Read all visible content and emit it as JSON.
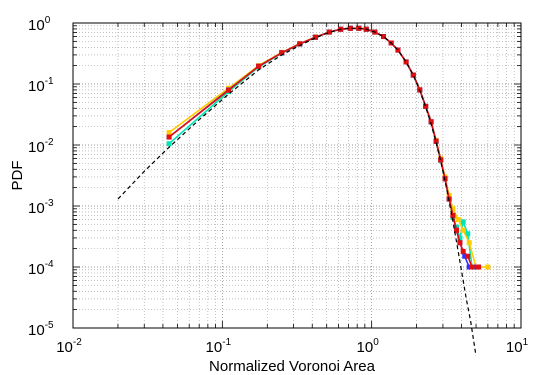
{
  "chart_data": {
    "type": "line",
    "title": "",
    "xlabel": "Normalized Voronoi Area",
    "ylabel": "PDF",
    "xscale": "log",
    "yscale": "log",
    "xlim": [
      0.01,
      10
    ],
    "ylim": [
      1e-05,
      1
    ],
    "x_ticks": [
      {
        "base": "10",
        "exp": "-2"
      },
      {
        "base": "10",
        "exp": "-1"
      },
      {
        "base": "10",
        "exp": "0"
      },
      {
        "base": "10",
        "exp": "1"
      }
    ],
    "y_ticks": [
      {
        "base": "10",
        "exp": "-5"
      },
      {
        "base": "10",
        "exp": "-4"
      },
      {
        "base": "10",
        "exp": "-3"
      },
      {
        "base": "10",
        "exp": "-2"
      },
      {
        "base": "10",
        "exp": "-1"
      },
      {
        "base": "10",
        "exp": "0"
      }
    ],
    "grid": true,
    "legend": "none",
    "series": [
      {
        "style": "solid",
        "color": "#00e5b5",
        "marker": "square",
        "x": [
          0.044,
          0.11,
          0.175,
          0.25,
          0.33,
          0.42,
          0.52,
          0.62,
          0.72,
          0.82,
          0.92,
          1.05,
          1.2,
          1.35,
          1.5,
          1.7,
          1.9,
          2.1,
          2.3,
          2.5,
          2.7,
          2.9,
          3.1,
          3.3,
          3.5,
          3.7,
          3.9,
          4.1,
          4.4,
          4.7
        ],
        "y": [
          0.0105,
          0.075,
          0.19,
          0.32,
          0.45,
          0.58,
          0.71,
          0.79,
          0.82,
          0.82,
          0.79,
          0.71,
          0.6,
          0.47,
          0.36,
          0.23,
          0.14,
          0.08,
          0.043,
          0.024,
          0.0115,
          0.0056,
          0.0028,
          0.0013,
          0.00065,
          0.00045,
          0.0003,
          0.00055,
          0.00035,
          0.0001
        ]
      },
      {
        "style": "solid",
        "color": "#ffcc00",
        "marker": "square",
        "x": [
          0.044,
          0.11,
          0.175,
          0.25,
          0.33,
          0.42,
          0.52,
          0.62,
          0.72,
          0.82,
          0.92,
          1.05,
          1.2,
          1.35,
          1.5,
          1.7,
          1.9,
          2.1,
          2.3,
          2.5,
          2.7,
          2.9,
          3.1,
          3.3,
          3.5,
          3.8,
          4.1,
          4.5,
          5.0,
          6.0
        ],
        "y": [
          0.016,
          0.085,
          0.2,
          0.33,
          0.46,
          0.59,
          0.71,
          0.79,
          0.82,
          0.82,
          0.79,
          0.71,
          0.6,
          0.47,
          0.36,
          0.23,
          0.14,
          0.08,
          0.043,
          0.024,
          0.012,
          0.006,
          0.003,
          0.0015,
          0.0009,
          0.0006,
          0.0004,
          0.00025,
          0.0001,
          0.0001
        ]
      },
      {
        "style": "solid",
        "color": "#3030ff",
        "marker": "square",
        "x": [
          0.044,
          0.11,
          0.175,
          0.25,
          0.33,
          0.42,
          0.52,
          0.62,
          0.72,
          0.82,
          0.92,
          1.05,
          1.2,
          1.35,
          1.5,
          1.7,
          1.9,
          2.1,
          2.3,
          2.5,
          2.7,
          2.9,
          3.1,
          3.3,
          3.5,
          3.7,
          3.9,
          4.2,
          4.5,
          5.0
        ],
        "y": [
          0.0135,
          0.08,
          0.195,
          0.325,
          0.455,
          0.585,
          0.71,
          0.79,
          0.82,
          0.82,
          0.79,
          0.71,
          0.6,
          0.47,
          0.36,
          0.23,
          0.14,
          0.08,
          0.043,
          0.024,
          0.0115,
          0.0057,
          0.0028,
          0.0013,
          0.0007,
          0.0004,
          0.00025,
          0.00015,
          0.0001,
          0.0001
        ]
      },
      {
        "style": "solid",
        "color": "#e01010",
        "marker": "square",
        "x": [
          0.044,
          0.11,
          0.175,
          0.25,
          0.33,
          0.42,
          0.52,
          0.62,
          0.72,
          0.82,
          0.92,
          1.05,
          1.2,
          1.35,
          1.5,
          1.7,
          1.9,
          2.1,
          2.3,
          2.5,
          2.7,
          2.9,
          3.1,
          3.3,
          3.5,
          3.7,
          3.9,
          4.1,
          4.4,
          4.7,
          5.2
        ],
        "y": [
          0.0135,
          0.079,
          0.195,
          0.325,
          0.455,
          0.585,
          0.71,
          0.79,
          0.82,
          0.82,
          0.79,
          0.71,
          0.6,
          0.47,
          0.36,
          0.23,
          0.14,
          0.08,
          0.043,
          0.024,
          0.0115,
          0.0057,
          0.0028,
          0.0013,
          0.0007,
          0.0004,
          0.00025,
          0.00018,
          0.00015,
          0.0001,
          0.0001
        ]
      },
      {
        "style": "dashed",
        "color": "#000000",
        "marker": "none",
        "x": [
          0.02,
          0.03,
          0.044,
          0.07,
          0.11,
          0.175,
          0.25,
          0.33,
          0.42,
          0.52,
          0.62,
          0.72,
          0.82,
          0.92,
          1.05,
          1.2,
          1.35,
          1.5,
          1.7,
          1.9,
          2.1,
          2.3,
          2.5,
          2.7,
          2.9,
          3.1,
          3.3,
          3.5,
          3.7,
          4.0,
          4.3,
          4.6,
          5.0
        ],
        "y": [
          0.0013,
          0.0037,
          0.0092,
          0.026,
          0.068,
          0.17,
          0.3,
          0.43,
          0.57,
          0.7,
          0.79,
          0.82,
          0.82,
          0.79,
          0.71,
          0.6,
          0.47,
          0.36,
          0.23,
          0.14,
          0.078,
          0.042,
          0.022,
          0.011,
          0.0054,
          0.0026,
          0.0012,
          0.00056,
          0.00026,
          8.5e-05,
          3e-05,
          1.3e-05,
          3.5e-06
        ]
      }
    ]
  }
}
